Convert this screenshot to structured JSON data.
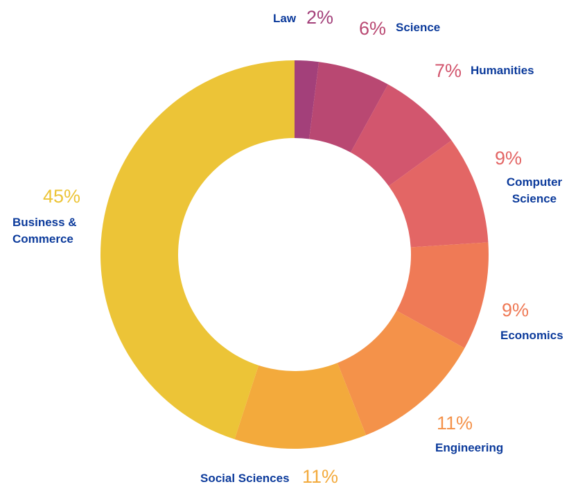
{
  "chart_data": {
    "type": "pie",
    "variant": "donut",
    "start": "top",
    "direction": "clockwise",
    "label_color": "#0b3a9b",
    "slices": [
      {
        "label": "Law",
        "value": 2,
        "pct_label": "2%",
        "color": "#a3407a"
      },
      {
        "label": "Science",
        "value": 6,
        "pct_label": "6%",
        "color": "#b94872"
      },
      {
        "label": "Humanities",
        "value": 7,
        "pct_label": "7%",
        "color": "#d2566e"
      },
      {
        "label": "Computer Science",
        "value": 9,
        "pct_label": "9%",
        "color": "#e36665"
      },
      {
        "label": "Economics",
        "value": 9,
        "pct_label": "9%",
        "color": "#ef7a56"
      },
      {
        "label": "Engineering",
        "value": 11,
        "pct_label": "11%",
        "color": "#f4924a"
      },
      {
        "label": "Social Sciences",
        "value": 11,
        "pct_label": "11%",
        "color": "#f3aa3c"
      },
      {
        "label": "Business & Commerce",
        "value": 45,
        "pct_label": "45%",
        "color": "#ecc437"
      }
    ]
  }
}
